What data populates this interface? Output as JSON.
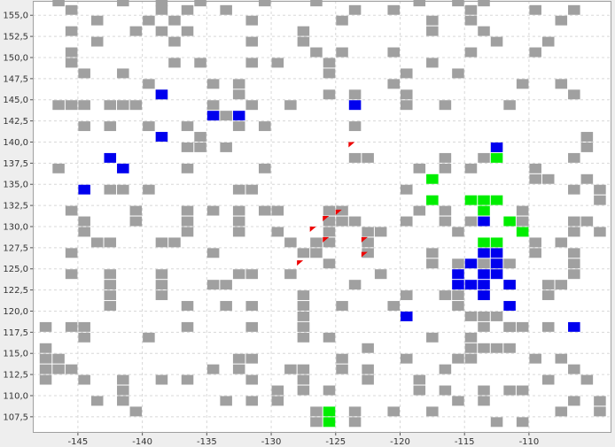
{
  "colors": {
    "background": "#ffffff",
    "frame": "#eeeeee",
    "grid": "#d8d8d8",
    "border": "#a0a0a0",
    "gray_cell": "#a0a0a0",
    "blue_cell": "#0000ee",
    "green_cell": "#00ee00",
    "red_marker": "#ee0000"
  },
  "chart_data": {
    "type": "heatmap",
    "title": "",
    "xlabel": "",
    "ylabel": "",
    "grid": true,
    "xlim": [
      -148.5,
      -103.6
    ],
    "ylim": [
      105.6,
      156.7
    ],
    "cell_size": [
      1.0,
      1.25
    ],
    "x_ticks": [
      {
        "value": -145,
        "label": "-145"
      },
      {
        "value": -140,
        "label": "-140"
      },
      {
        "value": -135,
        "label": "-135"
      },
      {
        "value": -130,
        "label": "-130"
      },
      {
        "value": -125,
        "label": "-125"
      },
      {
        "value": -120,
        "label": "-120"
      },
      {
        "value": -115,
        "label": "-115"
      },
      {
        "value": -110,
        "label": "-110"
      }
    ],
    "y_ticks": [
      {
        "value": 107.5,
        "label": "107,5"
      },
      {
        "value": 110.0,
        "label": "110,0"
      },
      {
        "value": 112.5,
        "label": "112,5"
      },
      {
        "value": 115.0,
        "label": "115,0"
      },
      {
        "value": 117.5,
        "label": "117,5"
      },
      {
        "value": 120.0,
        "label": "120,0"
      },
      {
        "value": 122.5,
        "label": "122,5"
      },
      {
        "value": 125.0,
        "label": "125,0"
      },
      {
        "value": 127.5,
        "label": "127,5"
      },
      {
        "value": 130.0,
        "label": "130,0"
      },
      {
        "value": 132.5,
        "label": "132,5"
      },
      {
        "value": 135.0,
        "label": "135,0"
      },
      {
        "value": 137.5,
        "label": "137,5"
      },
      {
        "value": 140.0,
        "label": "140,0"
      },
      {
        "value": 142.5,
        "label": "142,5"
      },
      {
        "value": 145.0,
        "label": "145,0"
      },
      {
        "value": 147.5,
        "label": "147,5"
      },
      {
        "value": 150.0,
        "label": "150,0"
      },
      {
        "value": 152.5,
        "label": "152,5"
      },
      {
        "value": 155.0,
        "label": "155,0"
      }
    ],
    "gray_cells": [
      [
        -147,
        156
      ],
      [
        -146,
        155
      ],
      [
        -146,
        152.5
      ],
      [
        -146,
        150
      ],
      [
        -146,
        148.75
      ],
      [
        -145,
        147.5
      ],
      [
        -145,
        143.75
      ],
      [
        -145,
        141.25
      ],
      [
        -144,
        153.75
      ],
      [
        -144,
        151.25
      ],
      [
        -143,
        143.75
      ],
      [
        -143,
        141.25
      ],
      [
        -146,
        143.75
      ],
      [
        -147,
        143.75
      ],
      [
        -142,
        156
      ],
      [
        -142,
        147.5
      ],
      [
        -142,
        143.75
      ],
      [
        -141,
        152.5
      ],
      [
        -141,
        143.75
      ],
      [
        -140,
        153.75
      ],
      [
        -140,
        146.25
      ],
      [
        -140,
        141.25
      ],
      [
        -139,
        156
      ],
      [
        -139,
        155
      ],
      [
        -139,
        152.5
      ],
      [
        -139,
        145
      ],
      [
        -138,
        153.75
      ],
      [
        -138,
        151.25
      ],
      [
        -138,
        148.75
      ],
      [
        -137,
        155
      ],
      [
        -137,
        152.5
      ],
      [
        -137,
        141.25
      ],
      [
        -137,
        138.75
      ],
      [
        -136,
        156
      ],
      [
        -136,
        148.75
      ],
      [
        -136,
        140
      ],
      [
        -135,
        146.25
      ],
      [
        -135,
        143.75
      ],
      [
        -134,
        155
      ],
      [
        -134,
        142.5
      ],
      [
        -133,
        146.25
      ],
      [
        -133,
        145
      ],
      [
        -133,
        141.25
      ],
      [
        -132,
        153.75
      ],
      [
        -132,
        151.25
      ],
      [
        -132,
        148.75
      ],
      [
        -132,
        143.75
      ],
      [
        -131,
        156
      ],
      [
        -131,
        141.25
      ],
      [
        -130,
        148.75
      ],
      [
        -129,
        143.75
      ],
      [
        -128,
        152.5
      ],
      [
        -128,
        151.25
      ],
      [
        -127,
        156
      ],
      [
        -127,
        150
      ],
      [
        -126,
        148.75
      ],
      [
        -126,
        147.5
      ],
      [
        -126,
        145
      ],
      [
        -125,
        153.75
      ],
      [
        -125,
        150
      ],
      [
        -124,
        155
      ],
      [
        -124,
        145
      ],
      [
        -124,
        141.25
      ],
      [
        -121,
        155
      ],
      [
        -121,
        150
      ],
      [
        -121,
        146.25
      ],
      [
        -120,
        147.5
      ],
      [
        -120,
        145
      ],
      [
        -120,
        143.75
      ],
      [
        -119,
        156
      ],
      [
        -118,
        153.75
      ],
      [
        -118,
        152.5
      ],
      [
        -118,
        148.75
      ],
      [
        -117,
        143.75
      ],
      [
        -116,
        156
      ],
      [
        -116,
        147.5
      ],
      [
        -115,
        155
      ],
      [
        -115,
        153.75
      ],
      [
        -115,
        150
      ],
      [
        -114,
        156
      ],
      [
        -114,
        152.5
      ],
      [
        -113,
        151.25
      ],
      [
        -112,
        143.75
      ],
      [
        -111,
        146.25
      ],
      [
        -110,
        155
      ],
      [
        -110,
        150
      ],
      [
        -109,
        151.25
      ],
      [
        -108,
        153.75
      ],
      [
        -108,
        146.25
      ],
      [
        -107,
        155
      ],
      [
        -107,
        145
      ],
      [
        -106,
        140
      ],
      [
        -106,
        138.75
      ],
      [
        -147,
        136.25
      ],
      [
        -146,
        131.25
      ],
      [
        -146,
        126.25
      ],
      [
        -146,
        123.75
      ],
      [
        -145,
        130
      ],
      [
        -145,
        128.75
      ],
      [
        -144,
        127.5
      ],
      [
        -143,
        133.75
      ],
      [
        -143,
        127.5
      ],
      [
        -143,
        123.75
      ],
      [
        -143,
        122.5
      ],
      [
        -143,
        121.25
      ],
      [
        -143,
        120
      ],
      [
        -142,
        133.75
      ],
      [
        -141,
        131.25
      ],
      [
        -141,
        130
      ],
      [
        -140,
        133.75
      ],
      [
        -139,
        127.5
      ],
      [
        -139,
        123.75
      ],
      [
        -139,
        122.5
      ],
      [
        -139,
        121.25
      ],
      [
        -138,
        127.5
      ],
      [
        -137,
        136.25
      ],
      [
        -137,
        131.25
      ],
      [
        -137,
        130
      ],
      [
        -137,
        128.75
      ],
      [
        -137,
        120
      ],
      [
        -136,
        138.75
      ],
      [
        -135,
        131.25
      ],
      [
        -135,
        126.25
      ],
      [
        -135,
        122.5
      ],
      [
        -134,
        138.75
      ],
      [
        -134,
        122.5
      ],
      [
        -134,
        120
      ],
      [
        -133,
        133.75
      ],
      [
        -133,
        131.25
      ],
      [
        -133,
        130
      ],
      [
        -133,
        128.75
      ],
      [
        -133,
        123.75
      ],
      [
        -132,
        133.75
      ],
      [
        -132,
        123.75
      ],
      [
        -132,
        120
      ],
      [
        -131,
        136.25
      ],
      [
        -131,
        131.25
      ],
      [
        -130,
        131.25
      ],
      [
        -130,
        128.75
      ],
      [
        -129,
        127.5
      ],
      [
        -129,
        123.75
      ],
      [
        -128,
        126.25
      ],
      [
        -128,
        121.25
      ],
      [
        -128,
        120
      ],
      [
        -128,
        118.75
      ],
      [
        -128,
        117.5
      ],
      [
        -127,
        127.5
      ],
      [
        -127,
        126.25
      ],
      [
        -126,
        131.25
      ],
      [
        -126,
        130
      ],
      [
        -126,
        128.75
      ],
      [
        -126,
        127.5
      ],
      [
        -126,
        125
      ],
      [
        -125,
        131.25
      ],
      [
        -125,
        130
      ],
      [
        -125,
        120
      ],
      [
        -124,
        137.5
      ],
      [
        -124,
        130
      ],
      [
        -124,
        122.5
      ],
      [
        -123,
        137.5
      ],
      [
        -123,
        128.75
      ],
      [
        -123,
        127.5
      ],
      [
        -123,
        126.25
      ],
      [
        -122,
        128.75
      ],
      [
        -122,
        123.75
      ],
      [
        -121,
        120
      ],
      [
        -120,
        133.75
      ],
      [
        -120,
        130
      ],
      [
        -120,
        121.25
      ],
      [
        -119,
        136.25
      ],
      [
        -119,
        131.25
      ],
      [
        -118,
        126.25
      ],
      [
        -118,
        125
      ],
      [
        -117,
        137.5
      ],
      [
        -117,
        136.25
      ],
      [
        -117,
        131.25
      ],
      [
        -117,
        130
      ],
      [
        -117,
        121.25
      ],
      [
        -116,
        128.75
      ],
      [
        -116,
        125
      ],
      [
        -116,
        121.25
      ],
      [
        -116,
        120
      ],
      [
        -115,
        136.25
      ],
      [
        -115,
        130
      ],
      [
        -115,
        118.75
      ],
      [
        -114,
        137.5
      ],
      [
        -114,
        125
      ],
      [
        -114,
        121.25
      ],
      [
        -114,
        118.75
      ],
      [
        -113,
        125
      ],
      [
        -113,
        118.75
      ],
      [
        -112,
        125
      ],
      [
        -112,
        122.5
      ],
      [
        -112,
        117.5
      ],
      [
        -111,
        131.25
      ],
      [
        -111,
        130
      ],
      [
        -111,
        117.5
      ],
      [
        -110,
        136.25
      ],
      [
        -110,
        135
      ],
      [
        -110,
        127.5
      ],
      [
        -110,
        126.25
      ],
      [
        -109,
        135
      ],
      [
        -109,
        122.5
      ],
      [
        -109,
        121.25
      ],
      [
        -108,
        127.5
      ],
      [
        -108,
        122.5
      ],
      [
        -107,
        137.5
      ],
      [
        -107,
        133.75
      ],
      [
        -107,
        130
      ],
      [
        -107,
        128.75
      ],
      [
        -107,
        126.25
      ],
      [
        -107,
        125
      ],
      [
        -107,
        123.75
      ],
      [
        -106,
        135
      ],
      [
        -106,
        130
      ],
      [
        -105,
        133.75
      ],
      [
        -105,
        132.5
      ],
      [
        -105,
        128.75
      ],
      [
        -148,
        117.5
      ],
      [
        -148,
        115
      ],
      [
        -148,
        113.75
      ],
      [
        -148,
        112.5
      ],
      [
        -148,
        111.25
      ],
      [
        -147,
        113.75
      ],
      [
        -147,
        112.5
      ],
      [
        -146,
        117.5
      ],
      [
        -146,
        112.5
      ],
      [
        -145,
        117.5
      ],
      [
        -145,
        116.25
      ],
      [
        -145,
        111.25
      ],
      [
        -144,
        108.75
      ],
      [
        -142,
        111.25
      ],
      [
        -142,
        110
      ],
      [
        -142,
        108.75
      ],
      [
        -141,
        107.5
      ],
      [
        -140,
        116.25
      ],
      [
        -139,
        111.25
      ],
      [
        -137,
        117.5
      ],
      [
        -137,
        111.25
      ],
      [
        -135,
        112.5
      ],
      [
        -134,
        108.75
      ],
      [
        -133,
        113.75
      ],
      [
        -133,
        112.5
      ],
      [
        -132,
        117.5
      ],
      [
        -132,
        113.75
      ],
      [
        -132,
        111.25
      ],
      [
        -132,
        108.75
      ],
      [
        -130,
        110
      ],
      [
        -130,
        108.75
      ],
      [
        -129,
        112.5
      ],
      [
        -128,
        117.5
      ],
      [
        -128,
        116.25
      ],
      [
        -128,
        112.5
      ],
      [
        -128,
        111.25
      ],
      [
        -128,
        110
      ],
      [
        -127,
        107.5
      ],
      [
        -127,
        106.25
      ],
      [
        -126,
        110
      ],
      [
        -126,
        116.25
      ],
      [
        -125,
        113.75
      ],
      [
        -125,
        112.5
      ],
      [
        -124,
        107.5
      ],
      [
        -124,
        106.25
      ],
      [
        -123,
        115
      ],
      [
        -123,
        112.5
      ],
      [
        -123,
        111.25
      ],
      [
        -121,
        107.5
      ],
      [
        -120,
        113.75
      ],
      [
        -119,
        111.25
      ],
      [
        -119,
        110
      ],
      [
        -118,
        116.25
      ],
      [
        -118,
        107.5
      ],
      [
        -117,
        112.5
      ],
      [
        -117,
        110
      ],
      [
        -116,
        113.75
      ],
      [
        -116,
        108.75
      ],
      [
        -115,
        116.25
      ],
      [
        -115,
        115
      ],
      [
        -115,
        113.75
      ],
      [
        -114,
        117.5
      ],
      [
        -114,
        115
      ],
      [
        -114,
        110
      ],
      [
        -114,
        108.75
      ],
      [
        -113,
        115
      ],
      [
        -113,
        106.25
      ],
      [
        -112,
        117.5
      ],
      [
        -112,
        115
      ],
      [
        -112,
        110
      ],
      [
        -111,
        110
      ],
      [
        -111,
        106.25
      ],
      [
        -110,
        113.75
      ],
      [
        -109,
        117.5
      ],
      [
        -109,
        111.25
      ],
      [
        -108,
        113.75
      ],
      [
        -108,
        107.5
      ],
      [
        -107,
        112.5
      ],
      [
        -107,
        108.75
      ],
      [
        -106,
        111.25
      ],
      [
        -105,
        108.75
      ],
      [
        -105,
        107.5
      ]
    ],
    "blue_cells": [
      [
        -139,
        145
      ],
      [
        -135,
        142.5
      ],
      [
        -133,
        142.5
      ],
      [
        -124,
        143.75
      ],
      [
        -139,
        140
      ],
      [
        -113,
        138.75
      ],
      [
        -143,
        137.5
      ],
      [
        -142,
        136.25
      ],
      [
        -145,
        133.75
      ],
      [
        -114,
        130
      ],
      [
        -114,
        126.25
      ],
      [
        -113,
        126.25
      ],
      [
        -113,
        125
      ],
      [
        -113,
        123.75
      ],
      [
        -114,
        123.75
      ],
      [
        -115,
        125
      ],
      [
        -116,
        123.75
      ],
      [
        -116,
        122.5
      ],
      [
        -115,
        122.5
      ],
      [
        -114,
        122.5
      ],
      [
        -114,
        121.25
      ],
      [
        -112,
        122.5
      ],
      [
        -120,
        118.75
      ],
      [
        -112,
        120
      ],
      [
        -107,
        117.5
      ]
    ],
    "green_cells": [
      [
        -118,
        135
      ],
      [
        -118,
        132.5
      ],
      [
        -115,
        132.5
      ],
      [
        -114,
        132.5
      ],
      [
        -113,
        132.5
      ],
      [
        -114,
        131.25
      ],
      [
        -113,
        137.5
      ],
      [
        -112,
        130
      ],
      [
        -111,
        128.75
      ],
      [
        -114,
        127.5
      ],
      [
        -113,
        127.5
      ],
      [
        -126,
        107.5
      ],
      [
        -126,
        106.25
      ]
    ],
    "red_markers": [
      [
        -124,
        138.75
      ],
      [
        -126,
        130
      ],
      [
        -127,
        128.75
      ],
      [
        -126,
        127.5
      ],
      [
        -123,
        127.5
      ],
      [
        -123,
        125.75
      ],
      [
        -125,
        130.75
      ],
      [
        -128,
        124.75
      ]
    ]
  }
}
